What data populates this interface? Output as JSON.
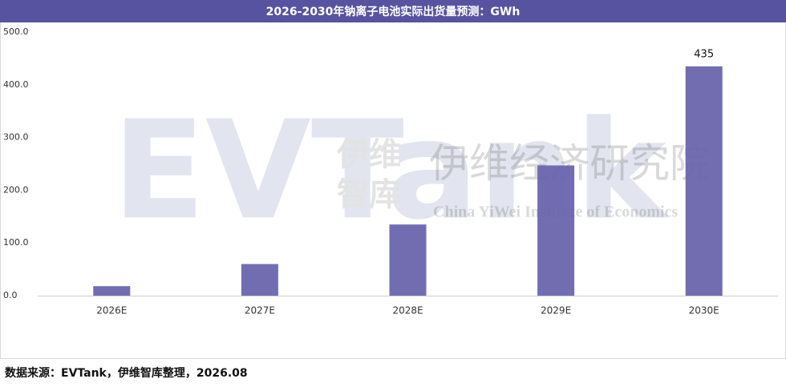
{
  "chart_data": {
    "type": "bar",
    "title": "2026-2030年钠离子电池实际出货量预测：GWh",
    "categories": [
      "2026E",
      "2027E",
      "2028E",
      "2029E",
      "2030E"
    ],
    "values": [
      18,
      60,
      135,
      247,
      435
    ],
    "data_labels": [
      false,
      false,
      false,
      false,
      true
    ],
    "color": "#6a65ad",
    "ylim": [
      0,
      500
    ],
    "yticks": [
      {
        "value": 0,
        "label": "0.0"
      },
      {
        "value": 100,
        "label": "100.0"
      },
      {
        "value": 200,
        "label": "200.0"
      },
      {
        "value": 300,
        "label": "300.0"
      },
      {
        "value": 400,
        "label": "400.0"
      },
      {
        "value": 500,
        "label": "500.0"
      }
    ],
    "grid": false
  },
  "watermark": {
    "logo": "EVTank",
    "short_name_1": "伊维",
    "short_name_2": "智库",
    "name_cn": "伊维经济研究院",
    "name_en": "China YiWei Institute of Economics"
  },
  "source": "数据来源：EVTank，伊维智库整理，2026.08"
}
